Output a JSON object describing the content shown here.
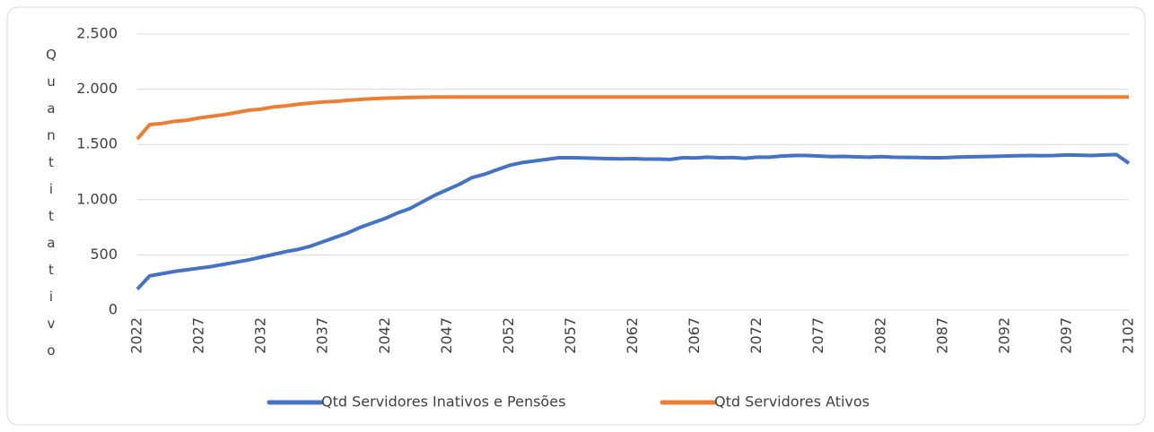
{
  "chart_data": {
    "type": "line",
    "y_label": "Quantitativo",
    "x": [
      2022,
      2023,
      2024,
      2025,
      2026,
      2027,
      2028,
      2029,
      2030,
      2031,
      2032,
      2033,
      2034,
      2035,
      2036,
      2037,
      2038,
      2039,
      2040,
      2041,
      2042,
      2043,
      2044,
      2045,
      2046,
      2047,
      2048,
      2049,
      2050,
      2051,
      2052,
      2053,
      2054,
      2055,
      2056,
      2057,
      2058,
      2059,
      2060,
      2061,
      2062,
      2063,
      2064,
      2065,
      2066,
      2067,
      2068,
      2069,
      2070,
      2071,
      2072,
      2073,
      2074,
      2075,
      2076,
      2077,
      2078,
      2079,
      2080,
      2081,
      2082,
      2083,
      2084,
      2085,
      2086,
      2087,
      2088,
      2089,
      2090,
      2091,
      2092,
      2093,
      2094,
      2095,
      2096,
      2097,
      2098,
      2099,
      2100,
      2101,
      2102
    ],
    "series": [
      {
        "name": "Qtd Servidores Inativos e Pensões",
        "color": "#4472c4",
        "values": [
          190,
          310,
          330,
          350,
          365,
          380,
          395,
          415,
          435,
          455,
          480,
          505,
          530,
          550,
          580,
          620,
          660,
          700,
          750,
          790,
          830,
          880,
          920,
          980,
          1040,
          1090,
          1140,
          1200,
          1230,
          1270,
          1310,
          1335,
          1350,
          1365,
          1380,
          1380,
          1378,
          1375,
          1372,
          1370,
          1372,
          1368,
          1368,
          1365,
          1380,
          1378,
          1385,
          1380,
          1382,
          1375,
          1385,
          1385,
          1395,
          1400,
          1400,
          1395,
          1390,
          1392,
          1388,
          1385,
          1390,
          1385,
          1383,
          1382,
          1380,
          1380,
          1385,
          1388,
          1390,
          1392,
          1395,
          1398,
          1400,
          1398,
          1400,
          1405,
          1403,
          1400,
          1405,
          1408,
          1330
        ]
      },
      {
        "name": "Qtd Servidores Ativos",
        "color": "#ed7d31",
        "values": [
          1550,
          1680,
          1690,
          1710,
          1720,
          1740,
          1755,
          1770,
          1790,
          1810,
          1820,
          1840,
          1850,
          1865,
          1875,
          1885,
          1890,
          1900,
          1908,
          1915,
          1920,
          1923,
          1926,
          1928,
          1930,
          1930,
          1930,
          1930,
          1930,
          1930,
          1930,
          1930,
          1930,
          1930,
          1930,
          1930,
          1930,
          1930,
          1930,
          1930,
          1930,
          1930,
          1930,
          1930,
          1930,
          1930,
          1930,
          1930,
          1930,
          1930,
          1930,
          1930,
          1930,
          1930,
          1930,
          1930,
          1930,
          1930,
          1930,
          1930,
          1930,
          1930,
          1930,
          1930,
          1930,
          1930,
          1930,
          1930,
          1930,
          1930,
          1930,
          1930,
          1930,
          1930,
          1930,
          1930,
          1930,
          1930,
          1930,
          1930,
          1930
        ]
      }
    ],
    "xlim": [
      2022,
      2102
    ],
    "xticks": [
      2022,
      2027,
      2032,
      2037,
      2042,
      2047,
      2052,
      2057,
      2062,
      2067,
      2072,
      2077,
      2082,
      2087,
      2092,
      2097,
      2102
    ],
    "ylim": [
      0,
      2500
    ],
    "yticks": [
      0,
      500,
      {
        "value": 1000,
        "label": "1.000"
      },
      {
        "value": 1500,
        "label": "1.500"
      },
      {
        "value": 2000,
        "label": "2.000"
      },
      {
        "value": 2500,
        "label": "2.500"
      }
    ],
    "grid": true,
    "legend": "bottom"
  }
}
